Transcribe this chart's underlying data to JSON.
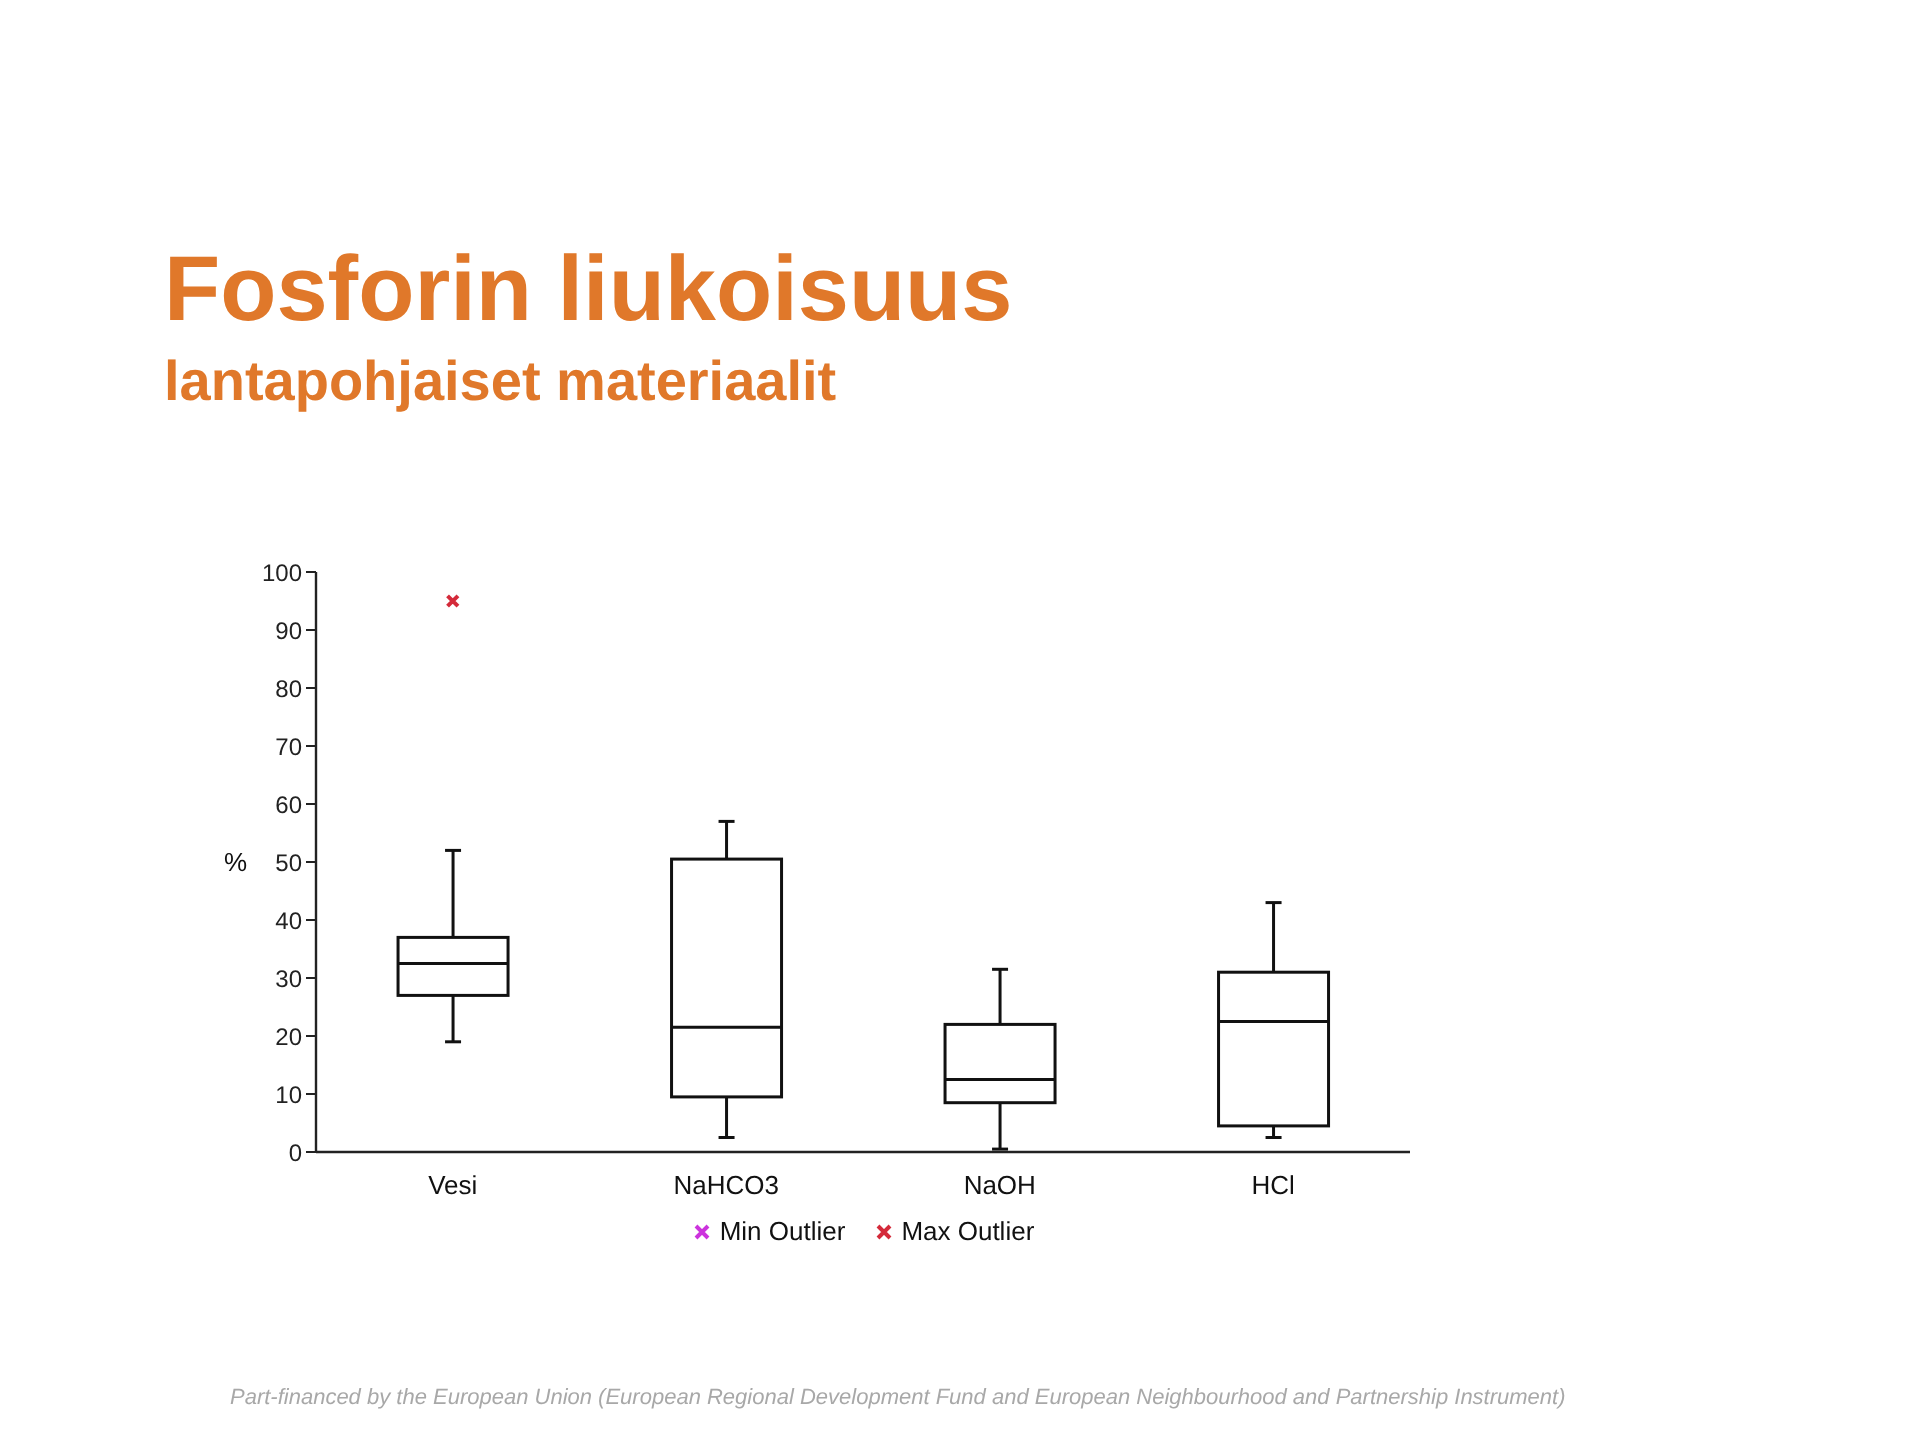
{
  "chart_data": {
    "type": "box",
    "title": "Fosforin liukoisuus",
    "subtitle": "lantapohjaiset materiaalit",
    "ylabel": "%",
    "categories": [
      "Vesi",
      "NaHCO3",
      "NaOH",
      "HCl"
    ],
    "boxes": [
      {
        "low": 19,
        "q1": 27,
        "median": 32.5,
        "q3": 37,
        "high": 52
      },
      {
        "low": 2.5,
        "q1": 9.5,
        "median": 21.5,
        "q3": 50.5,
        "high": 57
      },
      {
        "low": 0.5,
        "q1": 8.5,
        "median": 12.5,
        "q3": 22,
        "high": 31.5
      },
      {
        "low": 2.5,
        "q1": 4.5,
        "median": 22.5,
        "q3": 31,
        "high": 43
      }
    ],
    "series": [
      {
        "name": "Min Outlier",
        "type": "scatter",
        "color": "#cc33dd",
        "values": [
          null,
          null,
          null,
          null
        ]
      },
      {
        "name": "Max Outlier",
        "type": "scatter",
        "color": "#d42a3a",
        "values": [
          95,
          null,
          null,
          null
        ]
      }
    ],
    "ylim": [
      0,
      100
    ],
    "yticks": [
      0,
      10,
      20,
      30,
      40,
      50,
      60,
      70,
      80,
      90,
      100
    ],
    "legend": "bottom",
    "marker": "cross",
    "annotations": [
      "Part-financed by the European Union (European Regional Development Fund and European Neighbourhood and Partnership Instrument)"
    ]
  }
}
